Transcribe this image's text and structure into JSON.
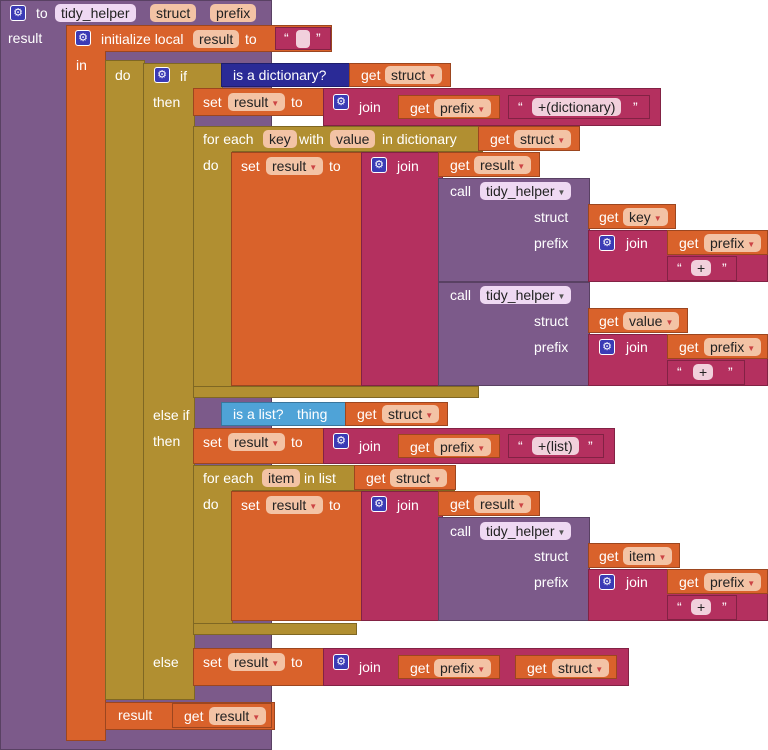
{
  "procedure": {
    "to": "to",
    "name": "tidy_helper",
    "params": [
      "struct",
      "prefix"
    ],
    "result": "result"
  },
  "init_local": {
    "label": "initialize local",
    "var": "result",
    "to": "to",
    "in": "in",
    "do": "do",
    "result_label": "result"
  },
  "ifblock": {
    "if": "if",
    "then": "then",
    "elseif": "else if",
    "else": "else",
    "is_dict": "is a dictionary?",
    "is_list": "is a list?",
    "thing": "thing"
  },
  "common": {
    "set": "set",
    "to": "to",
    "get": "get",
    "join": "join",
    "call": "call",
    "quote": "“",
    "quote_end": "”"
  },
  "vars": {
    "result": "result",
    "prefix": "prefix",
    "struct": "struct",
    "key": "key",
    "value": "value",
    "item": "item"
  },
  "strings": {
    "dictionary_suffix": "+(dictionary)",
    "list_suffix": "+(list)",
    "plus": "+"
  },
  "foreach_dict": {
    "for_each": "for each",
    "key": "key",
    "with": "with",
    "value": "value",
    "in_dictionary": "in dictionary",
    "do": "do"
  },
  "foreach_list": {
    "for_each": "for each",
    "item": "item",
    "in_list": "in list",
    "do": "do"
  },
  "call_labels": {
    "struct": "struct",
    "prefix": "prefix"
  },
  "colors": {
    "procedure": "#7c5a8a",
    "variable": "#d9622b",
    "control": "#b18f31",
    "text": "#b4305f",
    "dictionary": "#2a2a96",
    "list": "#4fa3d7"
  }
}
